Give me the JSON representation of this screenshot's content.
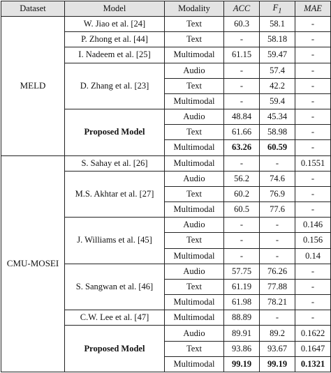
{
  "headers": {
    "dataset": "Dataset",
    "model": "Model",
    "modality": "Modality",
    "acc": "ACC",
    "f1": "F",
    "f1_sub": "1",
    "mae": "MAE"
  },
  "meld": {
    "name": "MELD",
    "rows": [
      {
        "model": "W. Jiao et al. [24]",
        "modality": "Text",
        "acc": "60.3",
        "f1": "58.1",
        "mae": "-"
      },
      {
        "model": "P. Zhong et al. [44]",
        "modality": "Text",
        "acc": "-",
        "f1": "58.18",
        "mae": "-"
      },
      {
        "model": "I. Nadeem et al. [25]",
        "modality": "Multimodal",
        "acc": "61.15",
        "f1": "59.47",
        "mae": "-"
      },
      {
        "model": "D. Zhang et al. [23]",
        "sub": [
          {
            "modality": "Audio",
            "acc": "-",
            "f1": "57.4",
            "mae": "-"
          },
          {
            "modality": "Text",
            "acc": "-",
            "f1": "42.2",
            "mae": "-"
          },
          {
            "modality": "Multimodal",
            "acc": "-",
            "f1": "59.4",
            "mae": "-"
          }
        ]
      },
      {
        "model": "Proposed Model",
        "sub": [
          {
            "modality": "Audio",
            "acc": "48.84",
            "f1": "45.34",
            "mae": "-"
          },
          {
            "modality": "Text",
            "acc": "61.66",
            "f1": "58.98",
            "mae": "-"
          },
          {
            "modality": "Multimodal",
            "acc": "63.26",
            "f1": "60.59",
            "mae": "-"
          }
        ]
      }
    ]
  },
  "mosei": {
    "name": "CMU-MOSEI",
    "rows": [
      {
        "model": "S. Sahay et al. [26]",
        "modality": "Multimodal",
        "acc": "-",
        "f1": "-",
        "mae": "0.1551"
      },
      {
        "model": "M.S. Akhtar et al. [27]",
        "sub": [
          {
            "modality": "Audio",
            "acc": "56.2",
            "f1": "74.6",
            "mae": "-"
          },
          {
            "modality": "Text",
            "acc": "60.2",
            "f1": "76.9",
            "mae": "-"
          },
          {
            "modality": "Multimodal",
            "acc": "60.5",
            "f1": "77.6",
            "mae": "-"
          }
        ]
      },
      {
        "model": "J. Williams et al. [45]",
        "sub": [
          {
            "modality": "Audio",
            "acc": "-",
            "f1": "-",
            "mae": "0.146"
          },
          {
            "modality": "Text",
            "acc": "-",
            "f1": "-",
            "mae": "0.156"
          },
          {
            "modality": "Multimodal",
            "acc": "-",
            "f1": "-",
            "mae": "0.14"
          }
        ]
      },
      {
        "model": "S. Sangwan et al. [46]",
        "sub": [
          {
            "modality": "Audio",
            "acc": "57.75",
            "f1": "76.26",
            "mae": "-"
          },
          {
            "modality": "Text",
            "acc": "61.19",
            "f1": "77.88",
            "mae": "-"
          },
          {
            "modality": "Multimodal",
            "acc": "61.98",
            "f1": "78.21",
            "mae": "-"
          }
        ]
      },
      {
        "model": "C.W. Lee et al. [47]",
        "modality": "Multimodal",
        "acc": "88.89",
        "f1": "-",
        "mae": "-"
      },
      {
        "model": "Proposed Model",
        "sub": [
          {
            "modality": "Audio",
            "acc": "89.91",
            "f1": "89.2",
            "mae": "0.1622"
          },
          {
            "modality": "Text",
            "acc": "93.86",
            "f1": "93.67",
            "mae": "0.1647"
          },
          {
            "modality": "Multimodal",
            "acc": "99.19",
            "f1": "99.19",
            "mae": "0.1321"
          }
        ]
      }
    ]
  }
}
